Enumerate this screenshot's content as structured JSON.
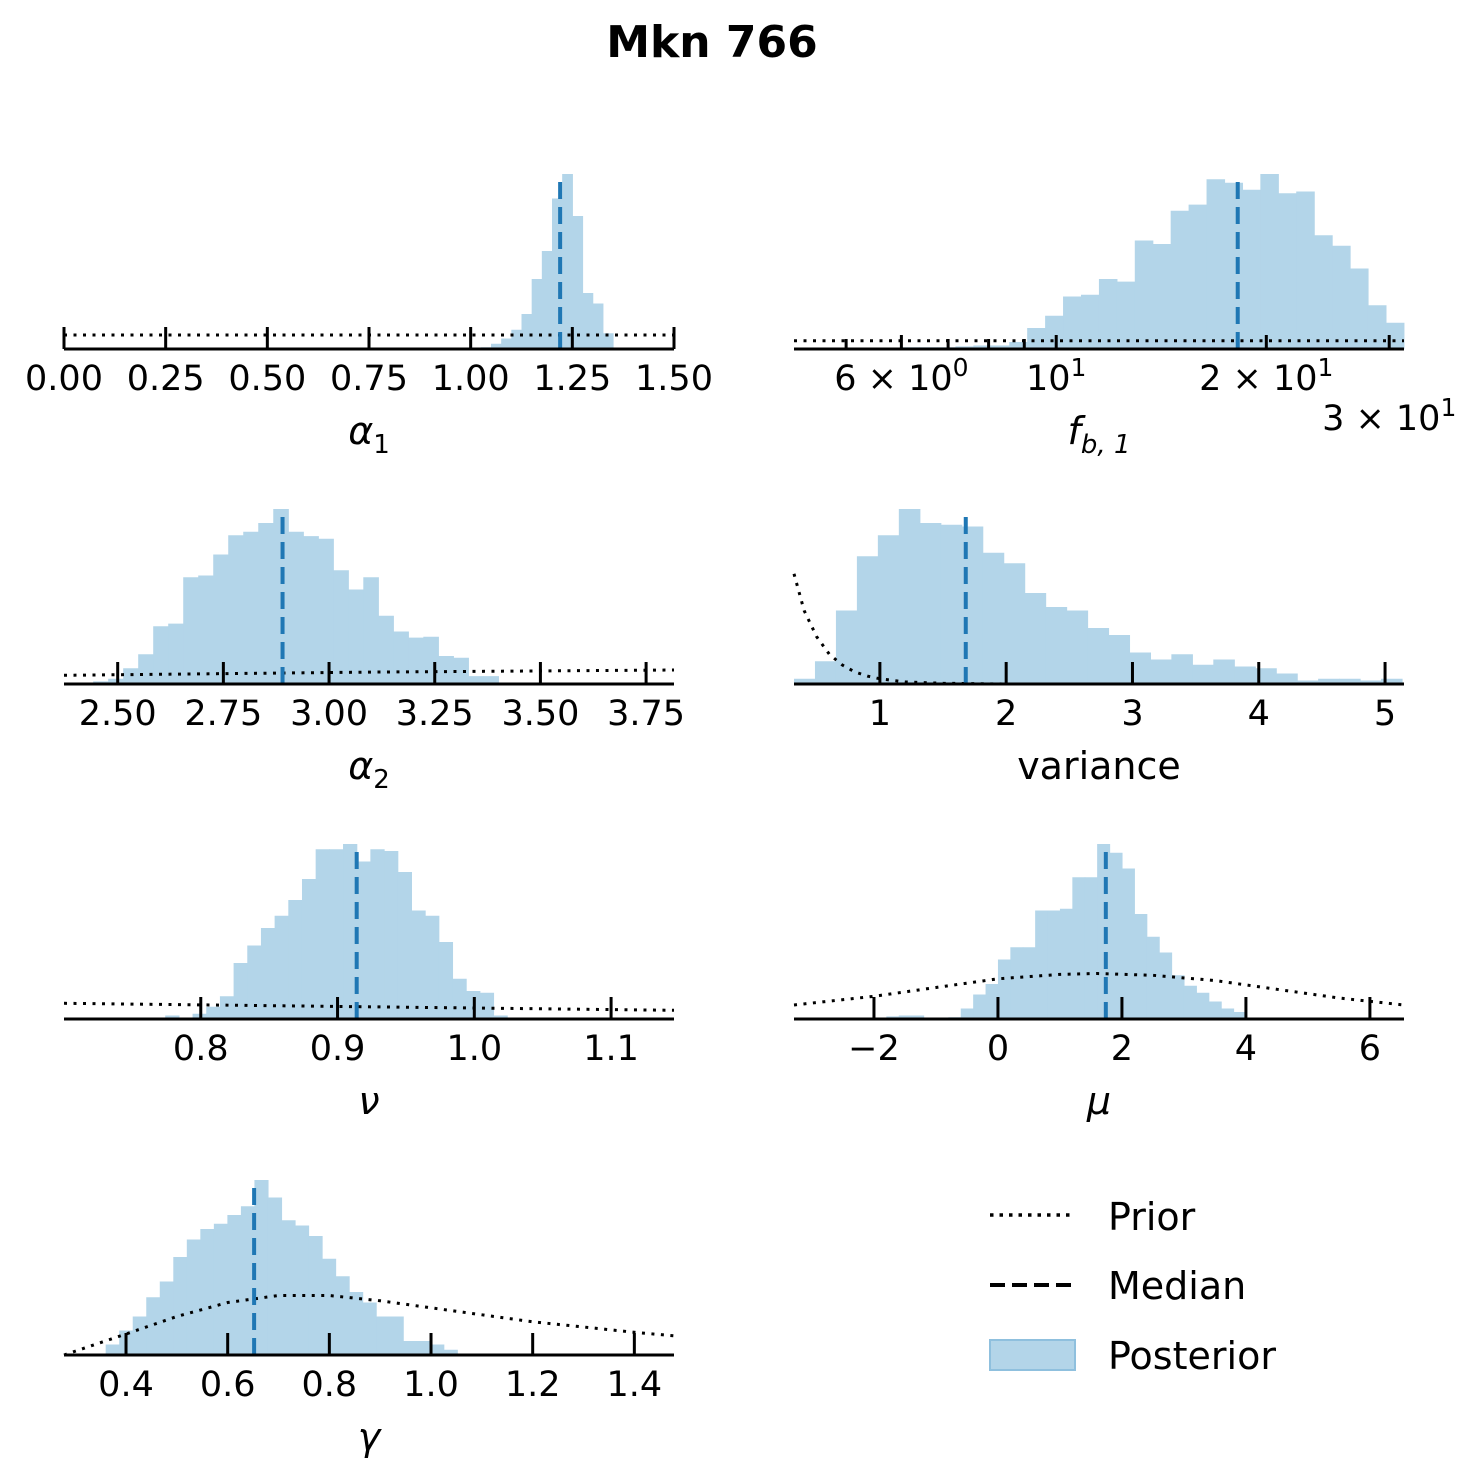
{
  "chart_data": {
    "title": "Mkn 766",
    "type": "bar",
    "colors": {
      "posterior": "#b3d5e9",
      "median": "#1f77b4",
      "prior": "#000000",
      "axis": "#000000"
    },
    "legend": {
      "placement": "bottom-right",
      "entries": [
        {
          "label": "Prior",
          "style": "dotted"
        },
        {
          "label": "Median",
          "style": "dashed"
        },
        {
          "label": "Posterior",
          "style": "patch"
        }
      ]
    },
    "panels": [
      {
        "id": "alpha1",
        "xlabel": {
          "main": "α",
          "sub": "1"
        },
        "scale": "linear",
        "xlim": [
          0.0,
          1.5
        ],
        "ticks": [
          {
            "v": 0,
            "t": "0.00"
          },
          {
            "v": 0.25,
            "t": "0.25"
          },
          {
            "v": 0.5,
            "t": "0.50"
          },
          {
            "v": 0.75,
            "t": "0.75"
          },
          {
            "v": 1.0,
            "t": "1.00"
          },
          {
            "v": 1.25,
            "t": "1.25"
          },
          {
            "v": 1.5,
            "t": "1.50"
          }
        ],
        "bins": {
          "start": 1.025,
          "width": 0.025,
          "density": [
            0.01,
            0.03,
            0.06,
            0.11,
            0.2,
            0.4,
            0.56,
            0.86,
            1.0,
            0.76,
            0.32,
            0.26,
            0.09
          ]
        },
        "median": 1.22,
        "prior": [
          [
            0,
            0.08
          ],
          [
            1.5,
            0.08
          ]
        ]
      },
      {
        "id": "fb1",
        "xlabel": {
          "main": "f",
          "sub": "b, 1"
        },
        "scale": "log",
        "xlim": [
          4.21,
          31.5
        ],
        "ticks": [
          {
            "v": 5,
            "t": ""
          },
          {
            "v": 6,
            "t": "6 × 10",
            "sup": "0"
          },
          {
            "v": 7,
            "t": ""
          },
          {
            "v": 8,
            "t": ""
          },
          {
            "v": 9,
            "t": ""
          },
          {
            "v": 10,
            "t": "10",
            "sup": "1"
          },
          {
            "v": 20,
            "t": "2 × 10",
            "sup": "1"
          },
          {
            "v": 30,
            "t": "3 × 10",
            "sup": "1"
          }
        ],
        "bins": {
          "start": 4.21,
          "log_width": 0.0257,
          "density": [
            0,
            0,
            0,
            0,
            0,
            0.005,
            0.01,
            0.01,
            0.01,
            0.015,
            0.02,
            0.02,
            0.04,
            0.12,
            0.19,
            0.3,
            0.31,
            0.4,
            0.385,
            0.62,
            0.6,
            0.79,
            0.825,
            0.97,
            0.95,
            0.91,
            1.0,
            0.89,
            0.9,
            0.65,
            0.59,
            0.46,
            0.25,
            0.15
          ]
        },
        "median": 18.2,
        "prior": [
          [
            4.21,
            0.047
          ],
          [
            31.5,
            0.047
          ]
        ]
      },
      {
        "id": "alpha2",
        "xlabel": {
          "main": "α",
          "sub": "2"
        },
        "scale": "linear",
        "xlim": [
          2.373,
          3.816
        ],
        "ticks": [
          {
            "v": 2.5,
            "t": "2.50"
          },
          {
            "v": 2.75,
            "t": "2.75"
          },
          {
            "v": 3.0,
            "t": "3.00"
          },
          {
            "v": 3.25,
            "t": "3.25"
          },
          {
            "v": 3.5,
            "t": "3.50"
          },
          {
            "v": 3.75,
            "t": "3.75"
          }
        ],
        "bins": {
          "start": 2.442,
          "width": 0.0355,
          "density": [
            0.015,
            0.03,
            0.09,
            0.17,
            0.33,
            0.345,
            0.61,
            0.62,
            0.74,
            0.85,
            0.87,
            0.92,
            1.0,
            0.87,
            0.845,
            0.83,
            0.65,
            0.54,
            0.61,
            0.39,
            0.3,
            0.265,
            0.27,
            0.16,
            0.15,
            0.045,
            0.045
          ]
        },
        "median": 2.89,
        "prior": [
          [
            2.373,
            0.05
          ],
          [
            3.1,
            0.068
          ],
          [
            3.816,
            0.08
          ]
        ]
      },
      {
        "id": "variance",
        "xlabel": {
          "main": "variance",
          "sub": ""
        },
        "scale": "linear",
        "xlim": [
          0.32,
          5.15
        ],
        "plain_label": true,
        "ticks": [
          {
            "v": 1,
            "t": "1"
          },
          {
            "v": 2,
            "t": "2"
          },
          {
            "v": 3,
            "t": "3"
          },
          {
            "v": 4,
            "t": "4"
          },
          {
            "v": 5,
            "t": "5"
          }
        ],
        "bins": {
          "start": 0.32,
          "width": 0.166,
          "density": [
            0.03,
            0.13,
            0.42,
            0.73,
            0.85,
            1.0,
            0.92,
            0.91,
            0.9,
            0.75,
            0.69,
            0.52,
            0.44,
            0.42,
            0.32,
            0.28,
            0.18,
            0.14,
            0.17,
            0.11,
            0.14,
            0.1,
            0.09,
            0.06,
            0.02,
            0.03,
            0.03,
            0.02,
            0.03
          ]
        },
        "median": 1.68,
        "prior": [
          [
            0.32,
            0.63
          ],
          [
            0.4,
            0.42
          ],
          [
            0.5,
            0.27
          ],
          [
            0.6,
            0.17
          ],
          [
            0.7,
            0.11
          ],
          [
            0.8,
            0.07
          ],
          [
            0.9,
            0.045
          ],
          [
            1.0,
            0.03
          ],
          [
            1.2,
            0.012
          ],
          [
            1.5,
            0.004
          ],
          [
            2.0,
            0.0
          ],
          [
            5.15,
            0.0
          ]
        ]
      },
      {
        "id": "nu",
        "xlabel": {
          "main": "ν",
          "sub": ""
        },
        "scale": "linear",
        "xlim": [
          0.7,
          1.146
        ],
        "ticks": [
          {
            "v": 0.8,
            "t": "0.8"
          },
          {
            "v": 0.9,
            "t": "0.9"
          },
          {
            "v": 1.0,
            "t": "1.0"
          },
          {
            "v": 1.1,
            "t": "1.1"
          }
        ],
        "bins": {
          "start": 0.774,
          "width": 0.01,
          "density": [
            0.02,
            0,
            0.03,
            0.07,
            0.13,
            0.32,
            0.42,
            0.52,
            0.59,
            0.68,
            0.8,
            0.97,
            0.97,
            1.0,
            0.9,
            0.97,
            0.96,
            0.84,
            0.62,
            0.59,
            0.44,
            0.23,
            0.16,
            0.15,
            0.02
          ]
        },
        "median": 0.914,
        "prior": [
          [
            0.7,
            0.09
          ],
          [
            1.146,
            0.05
          ]
        ]
      },
      {
        "id": "mu",
        "xlabel": {
          "main": "μ",
          "sub": ""
        },
        "scale": "linear",
        "xlim": [
          -3.29,
          6.55
        ],
        "ticks": [
          {
            "v": -2,
            "t": "−2"
          },
          {
            "v": 0,
            "t": "0"
          },
          {
            "v": 2,
            "t": "2"
          },
          {
            "v": 4,
            "t": "4"
          },
          {
            "v": 6,
            "t": "6"
          }
        ],
        "bins": {
          "start": -1.8,
          "width": 0.2,
          "density": [
            0.015,
            0.02,
            0.02,
            0,
            0,
            0.01,
            0.06,
            0.14,
            0.2,
            0.34,
            0.41,
            0.41,
            0.62,
            0.62,
            0.63,
            0.81,
            0.81,
            1.0,
            0.95,
            0.86,
            0.6,
            0.47,
            0.38,
            0.25,
            0.19,
            0.15,
            0.1,
            0.06,
            0.04
          ]
        },
        "median": 1.74,
        "prior": [
          [
            -3.29,
            0.08
          ],
          [
            -2,
            0.13
          ],
          [
            -1,
            0.18
          ],
          [
            0,
            0.23
          ],
          [
            1,
            0.255
          ],
          [
            1.6,
            0.26
          ],
          [
            2.5,
            0.25
          ],
          [
            3.5,
            0.22
          ],
          [
            4.5,
            0.17
          ],
          [
            5.5,
            0.12
          ],
          [
            6.55,
            0.08
          ]
        ]
      },
      {
        "id": "gamma",
        "xlabel": {
          "main": "γ",
          "sub": ""
        },
        "scale": "linear",
        "xlim": [
          0.278,
          1.478
        ],
        "ticks": [
          {
            "v": 0.4,
            "t": "0.4"
          },
          {
            "v": 0.6,
            "t": "0.6"
          },
          {
            "v": 0.8,
            "t": "0.8"
          },
          {
            "v": 1.0,
            "t": "1.0"
          },
          {
            "v": 1.2,
            "t": "1.2"
          },
          {
            "v": 1.4,
            "t": "1.4"
          }
        ],
        "bins": {
          "start": 0.36,
          "width": 0.0266,
          "density": [
            0.06,
            0.14,
            0.22,
            0.33,
            0.42,
            0.56,
            0.66,
            0.72,
            0.75,
            0.8,
            0.85,
            1.0,
            0.9,
            0.77,
            0.74,
            0.68,
            0.55,
            0.45,
            0.36,
            0.3,
            0.22,
            0.22,
            0.08,
            0.08,
            0.06,
            0.03
          ]
        },
        "median": 0.652,
        "prior": [
          [
            0.278,
            0.0
          ],
          [
            0.4,
            0.12
          ],
          [
            0.5,
            0.22
          ],
          [
            0.6,
            0.3
          ],
          [
            0.7,
            0.34
          ],
          [
            0.8,
            0.34
          ],
          [
            0.9,
            0.31
          ],
          [
            1.0,
            0.27
          ],
          [
            1.1,
            0.23
          ],
          [
            1.2,
            0.19
          ],
          [
            1.3,
            0.16
          ],
          [
            1.4,
            0.13
          ],
          [
            1.478,
            0.11
          ]
        ]
      }
    ]
  }
}
